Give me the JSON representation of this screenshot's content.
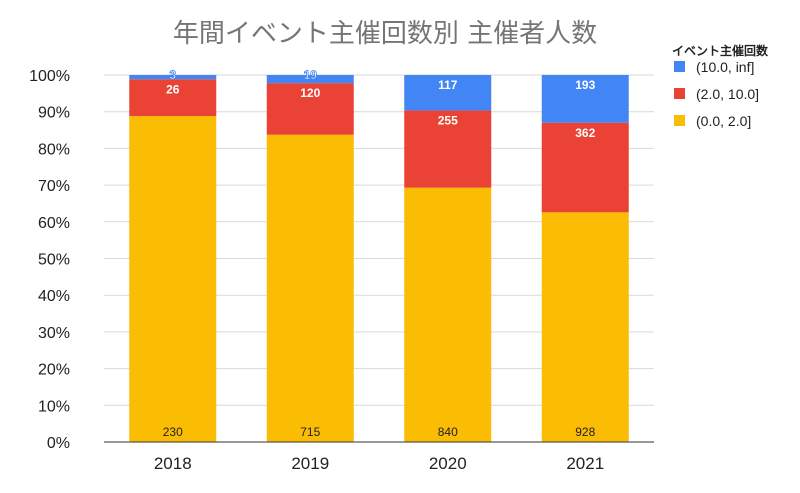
{
  "chart_data": {
    "type": "bar",
    "stacked": "percent",
    "title": "年間イベント主催回数別 主催者人数",
    "xlabel": "",
    "ylabel": "",
    "categories": [
      "2018",
      "2019",
      "2020",
      "2021"
    ],
    "series": [
      {
        "name": "(0.0, 2.0]",
        "color": "#fbbc04",
        "values": [
          230,
          715,
          840,
          928
        ]
      },
      {
        "name": "(2.0, 10.0]",
        "color": "#ea4335",
        "values": [
          26,
          120,
          255,
          362
        ]
      },
      {
        "name": "(10.0, inf]",
        "color": "#4285f4",
        "values": [
          3,
          19,
          117,
          193
        ]
      }
    ],
    "yticks": [
      "0%",
      "10%",
      "20%",
      "30%",
      "40%",
      "50%",
      "60%",
      "70%",
      "80%",
      "90%",
      "100%"
    ],
    "ylim": [
      0,
      100
    ],
    "grid": true,
    "legend": {
      "title": "イベント主催回数",
      "position": "top-right",
      "order": [
        "(10.0, inf]",
        "(2.0, 10.0]",
        "(0.0, 2.0]"
      ]
    }
  }
}
